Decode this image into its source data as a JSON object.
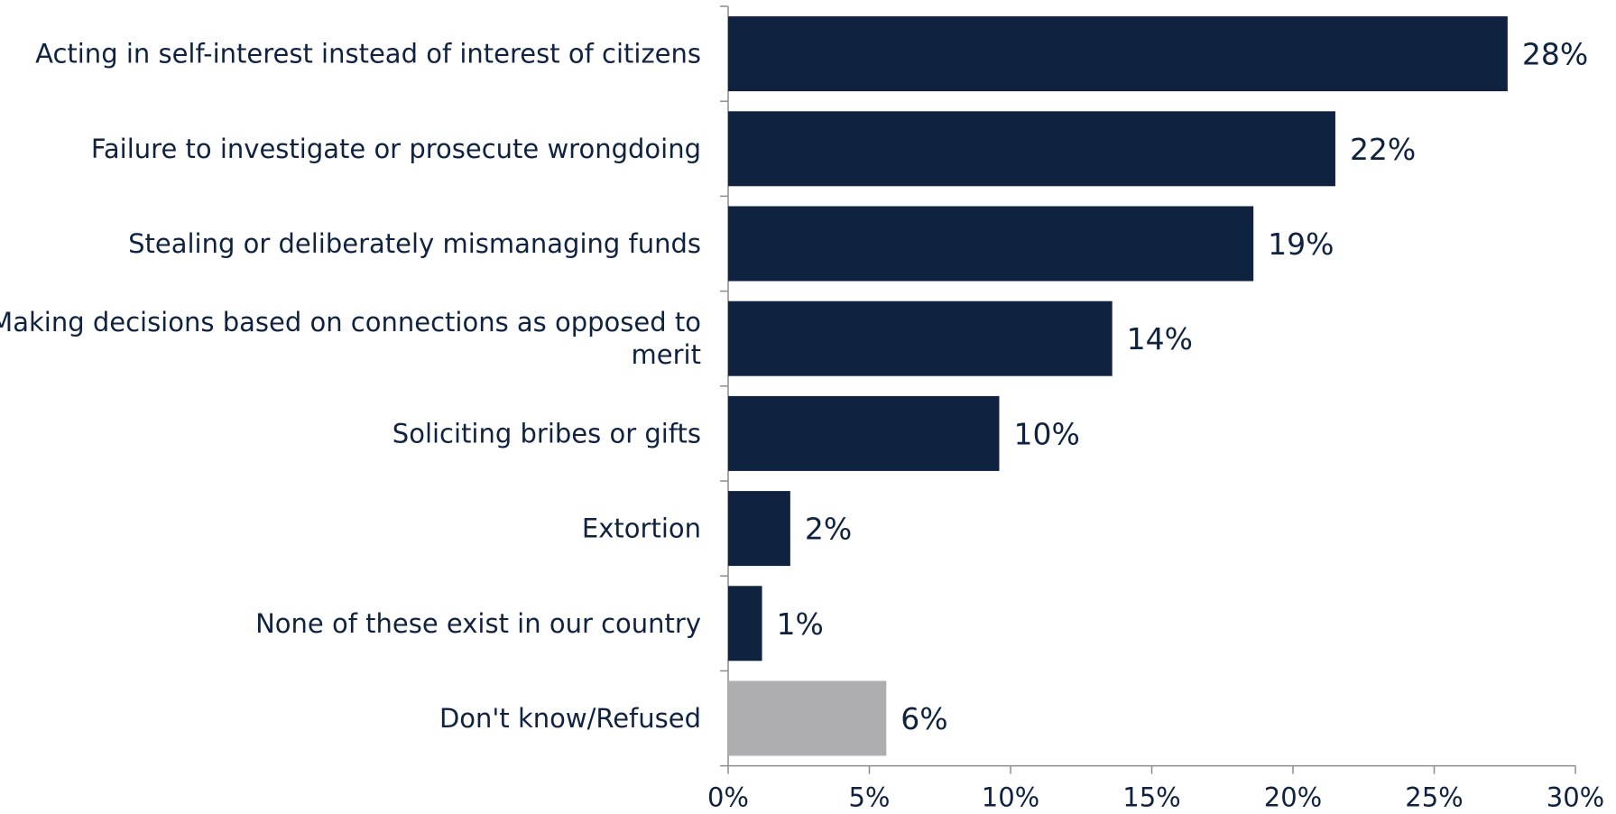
{
  "chart_data": {
    "type": "bar",
    "orientation": "horizontal",
    "categories": [
      [
        "Acting in self-interest instead of interest of citizens"
      ],
      [
        "Failure to investigate or prosecute wrongdoing"
      ],
      [
        "Stealing or deliberately mismanaging funds"
      ],
      [
        "Making decisions based on connections as opposed to",
        "merit"
      ],
      [
        "Soliciting bribes or gifts"
      ],
      [
        "Extortion"
      ],
      [
        "None of these exist in our country"
      ],
      [
        "Don't know/Refused"
      ]
    ],
    "values": [
      27.6,
      21.5,
      18.6,
      13.6,
      9.6,
      2.2,
      1.2,
      5.6
    ],
    "data_labels": [
      "28%",
      "22%",
      "19%",
      "14%",
      "10%",
      "2%",
      "1%",
      "6%"
    ],
    "bar_colors": [
      "#0f2240",
      "#0f2240",
      "#0f2240",
      "#0f2240",
      "#0f2240",
      "#0f2240",
      "#0f2240",
      "#aeaeb0"
    ],
    "xlim": [
      0,
      30
    ],
    "x_ticks": [
      0,
      5,
      10,
      15,
      20,
      25,
      30
    ],
    "x_tick_labels": [
      "0%",
      "5%",
      "10%",
      "15%",
      "20%",
      "25%",
      "30%"
    ],
    "title": "",
    "xlabel": "",
    "ylabel": "",
    "grid": false,
    "legend": "none"
  },
  "colors": {
    "text": "#0f2240",
    "axis": "#8c8c8c"
  }
}
